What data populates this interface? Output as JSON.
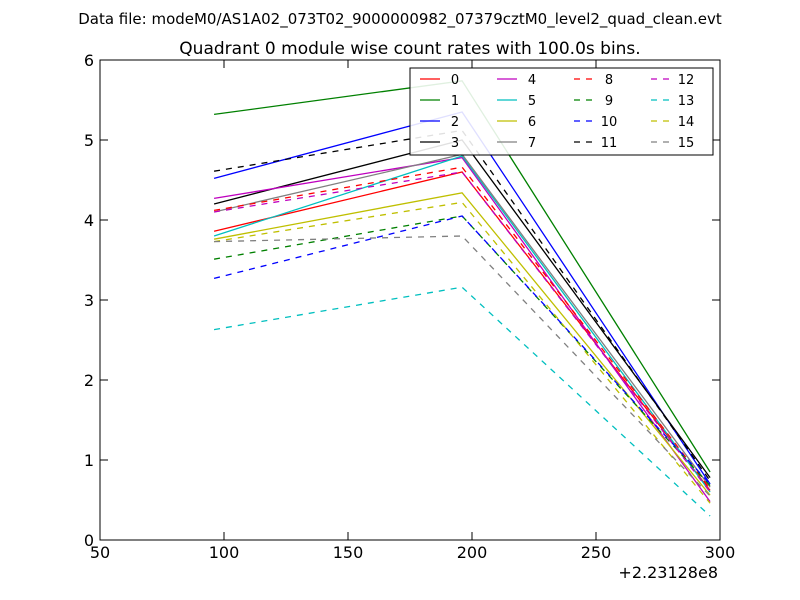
{
  "figure": {
    "suptitle": "Data file: modeM0/AS1A02_073T02_9000000982_07379cztM0_level2_quad_clean.evt"
  },
  "chart_data": {
    "type": "line",
    "title": "Quadrant 0 module wise count rates with 100.0s bins.",
    "xlabel": "",
    "ylabel": "",
    "x_offset_label": "+2.23128e8",
    "xlim": [
      50,
      300
    ],
    "ylim": [
      0,
      6
    ],
    "xticks": [
      "50",
      "100",
      "150",
      "200",
      "250",
      "300"
    ],
    "yticks": [
      "0",
      "1",
      "2",
      "3",
      "4",
      "5",
      "6"
    ],
    "x": [
      96,
      196,
      296
    ],
    "legend_position": "top-right",
    "series": [
      {
        "name": "0",
        "color": "#ff0000",
        "dash": "solid",
        "values": [
          3.86,
          4.6,
          0.62
        ]
      },
      {
        "name": "1",
        "color": "#008000",
        "dash": "solid",
        "values": [
          5.32,
          5.74,
          0.85
        ]
      },
      {
        "name": "2",
        "color": "#0000ff",
        "dash": "solid",
        "values": [
          4.52,
          5.35,
          0.7
        ]
      },
      {
        "name": "3",
        "color": "#000000",
        "dash": "solid",
        "values": [
          4.2,
          5.0,
          0.78
        ]
      },
      {
        "name": "4",
        "color": "#bf00bf",
        "dash": "solid",
        "values": [
          4.27,
          4.78,
          0.48
        ]
      },
      {
        "name": "5",
        "color": "#00bfbf",
        "dash": "solid",
        "values": [
          3.8,
          4.8,
          0.6
        ]
      },
      {
        "name": "6",
        "color": "#bfbf00",
        "dash": "solid",
        "values": [
          3.76,
          4.34,
          0.56
        ]
      },
      {
        "name": "7",
        "color": "#808080",
        "dash": "solid",
        "values": [
          4.1,
          4.82,
          0.66
        ]
      },
      {
        "name": "8",
        "color": "#ff0000",
        "dash": "dashed",
        "values": [
          4.12,
          4.66,
          0.64
        ]
      },
      {
        "name": "9",
        "color": "#008000",
        "dash": "dashed",
        "values": [
          3.51,
          4.05,
          0.68
        ]
      },
      {
        "name": "10",
        "color": "#0000ff",
        "dash": "dashed",
        "values": [
          3.27,
          4.05,
          0.7
        ]
      },
      {
        "name": "11",
        "color": "#000000",
        "dash": "dashed",
        "values": [
          4.61,
          5.12,
          0.74
        ]
      },
      {
        "name": "12",
        "color": "#bf00bf",
        "dash": "dashed",
        "values": [
          4.1,
          4.6,
          0.6
        ]
      },
      {
        "name": "13",
        "color": "#00bfbf",
        "dash": "dashed",
        "values": [
          2.63,
          3.16,
          0.3
        ]
      },
      {
        "name": "14",
        "color": "#bfbf00",
        "dash": "dashed",
        "values": [
          3.73,
          4.22,
          0.46
        ]
      },
      {
        "name": "15",
        "color": "#808080",
        "dash": "dashed",
        "values": [
          3.73,
          3.8,
          0.55
        ]
      }
    ]
  }
}
